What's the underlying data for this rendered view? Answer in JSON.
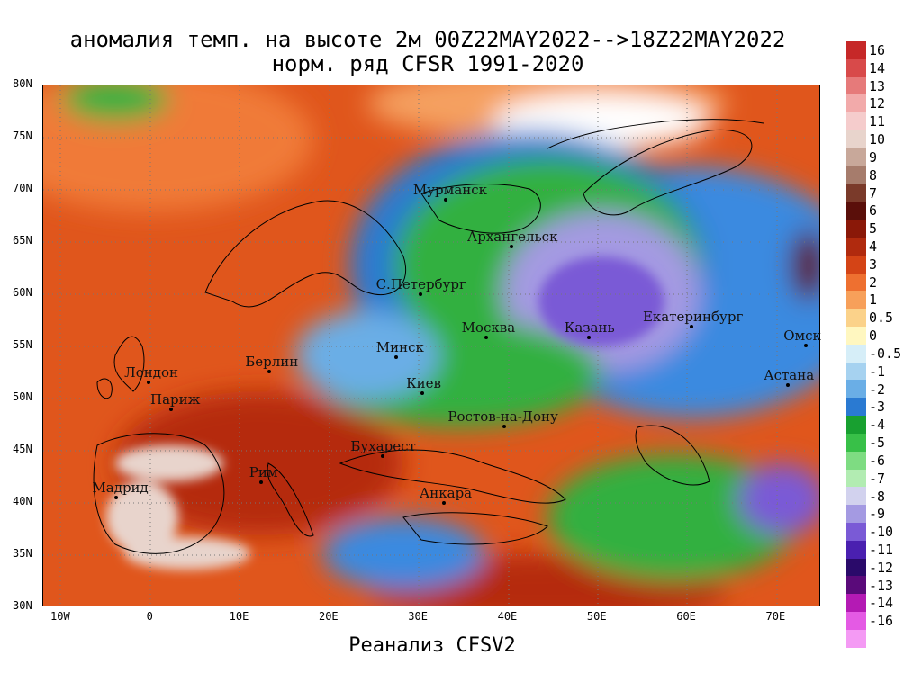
{
  "title": {
    "line1": "аномалия темп. на высоте 2м 00Z22MAY2022-->18Z22MAY2022",
    "line2": "норм. ряд CFSR 1991-2020"
  },
  "footer": "Реанализ CFSV2",
  "map": {
    "lat_labels": [
      "80N",
      "75N",
      "70N",
      "65N",
      "60N",
      "55N",
      "50N",
      "45N",
      "40N",
      "35N",
      "30N"
    ],
    "lon_labels": [
      "10W",
      "0",
      "10E",
      "20E",
      "30E",
      "40E",
      "50E",
      "60E",
      "70E"
    ],
    "lat_range": [
      30,
      80
    ],
    "lon_range": [
      -12,
      75
    ],
    "grid": "dotted",
    "cities": [
      {
        "name": "Мурманск",
        "lat": 69.0,
        "lon": 33.1
      },
      {
        "name": "Архангельск",
        "lat": 64.5,
        "lon": 40.5
      },
      {
        "name": "С.Петербург",
        "lat": 59.9,
        "lon": 30.3
      },
      {
        "name": "Москва",
        "lat": 55.75,
        "lon": 37.6
      },
      {
        "name": "Казань",
        "lat": 55.8,
        "lon": 49.1
      },
      {
        "name": "Екатеринбург",
        "lat": 56.8,
        "lon": 60.6
      },
      {
        "name": "Минск",
        "lat": 53.9,
        "lon": 27.6
      },
      {
        "name": "Берлин",
        "lat": 52.5,
        "lon": 13.4
      },
      {
        "name": "Лондон",
        "lat": 51.5,
        "lon": -0.1
      },
      {
        "name": "Париж",
        "lat": 48.9,
        "lon": 2.35
      },
      {
        "name": "Киев",
        "lat": 50.45,
        "lon": 30.5
      },
      {
        "name": "Омск",
        "lat": 55.0,
        "lon": 73.4
      },
      {
        "name": "Астана",
        "lat": 51.2,
        "lon": 71.4
      },
      {
        "name": "Ростов-на-Дону",
        "lat": 47.2,
        "lon": 39.7
      },
      {
        "name": "Бухарест",
        "lat": 44.4,
        "lon": 26.1
      },
      {
        "name": "Рим",
        "lat": 41.9,
        "lon": 12.5
      },
      {
        "name": "Мадрид",
        "lat": 40.4,
        "lon": -3.7
      },
      {
        "name": "Анкара",
        "lat": 39.9,
        "lon": 32.9
      }
    ]
  },
  "colorbar": {
    "labels": [
      "16",
      "14",
      "13",
      "12",
      "11",
      "10",
      "9",
      "8",
      "7",
      "6",
      "5",
      "4",
      "3",
      "2",
      "1",
      "0.5",
      "0",
      "-0.5",
      "-1",
      "-2",
      "-3",
      "-4",
      "-5",
      "-6",
      "-7",
      "-8",
      "-9",
      "-10",
      "-11",
      "-12",
      "-13",
      "-14",
      "-16"
    ],
    "colors": [
      "#c62828",
      "#d84a4a",
      "#e67a7a",
      "#f2aaaa",
      "#f5cccc",
      "#e8d4cc",
      "#c8a89a",
      "#a67c6c",
      "#7a3a2a",
      "#5a0f0a",
      "#8a1808",
      "#b02a0e",
      "#d44416",
      "#ee7030",
      "#f7a05a",
      "#fbd28a",
      "#fff7c0",
      "#d6eef8",
      "#a6d2f0",
      "#6aaee6",
      "#2a7ad2",
      "#18a030",
      "#38c048",
      "#7edc82",
      "#b2ecb2",
      "#d2d2ee",
      "#a49ae2",
      "#7a5ad6",
      "#4a20b0",
      "#2a0a6a",
      "#5a0a7a",
      "#b41ab4",
      "#e45ae4",
      "#f49af4"
    ]
  }
}
